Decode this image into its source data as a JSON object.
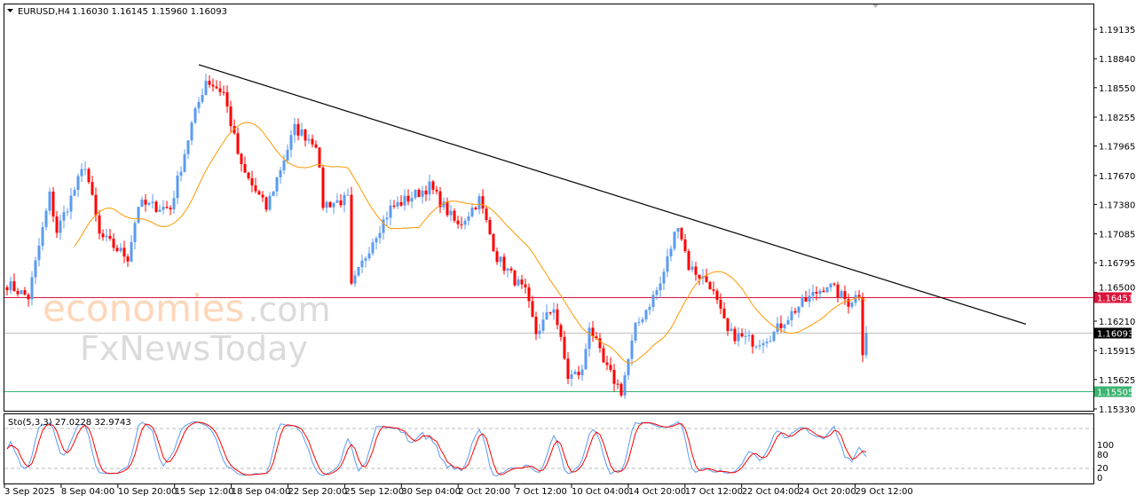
{
  "header": {
    "symbol": "EURUSD,H4",
    "ohlc": "1.16030 1.16145 1.15960 1.16093"
  },
  "watermark": {
    "brand_1": "economies",
    "brand_1_suffix": ".com",
    "brand_2": "FxNewsToday"
  },
  "colors": {
    "bull": "#5b9bf0",
    "bear": "#ff0000",
    "ma": "#ff9900",
    "trendline": "#000000",
    "resistance": "#dc143c",
    "support": "#3cb371",
    "current": "#000000"
  },
  "chart_data": [
    {
      "type": "candlestick",
      "title": "EURUSD,H4",
      "ylim": [
        1.1533,
        1.19135
      ],
      "y_ticks": [
        "1.19135",
        "1.18840",
        "1.18550",
        "1.18255",
        "1.17965",
        "1.17670",
        "1.17380",
        "1.17085",
        "1.16795",
        "1.16500",
        "1.16210",
        "1.15915",
        "1.15625",
        "1.15330"
      ],
      "x_ticks": [
        "3 Sep 2025",
        "8 Sep 04:00",
        "10 Sep 20:00",
        "15 Sep 12:00",
        "18 Sep 04:00",
        "22 Sep 20:00",
        "25 Sep 12:00",
        "30 Sep 04:00",
        "2 Oct 20:00",
        "7 Oct 12:00",
        "10 Oct 04:00",
        "14 Oct 20:00",
        "17 Oct 12:00",
        "22 Oct 04:00",
        "24 Oct 20:00",
        "29 Oct 12:00"
      ],
      "bars_total": 243,
      "close_path": [
        [
          0,
          1.1658
        ],
        [
          6,
          1.1645
        ],
        [
          12,
          1.1747
        ],
        [
          14,
          1.1711
        ],
        [
          22,
          1.1778
        ],
        [
          26,
          1.1707
        ],
        [
          34,
          1.1685
        ],
        [
          37,
          1.1738
        ],
        [
          46,
          1.1734
        ],
        [
          52,
          1.1818
        ],
        [
          56,
          1.1863
        ],
        [
          61,
          1.185
        ],
        [
          66,
          1.1774
        ],
        [
          73,
          1.1734
        ],
        [
          81,
          1.1814
        ],
        [
          87,
          1.18
        ],
        [
          89,
          1.1738
        ],
        [
          96,
          1.1743
        ],
        [
          97,
          1.1654
        ],
        [
          103,
          1.1703
        ],
        [
          108,
          1.1734
        ],
        [
          119,
          1.1756
        ],
        [
          127,
          1.1716
        ],
        [
          133,
          1.1743
        ],
        [
          138,
          1.1685
        ],
        [
          146,
          1.1649
        ],
        [
          149,
          1.1609
        ],
        [
          154,
          1.1636
        ],
        [
          158,
          1.1565
        ],
        [
          162,
          1.157
        ],
        [
          164,
          1.1618
        ],
        [
          168,
          1.1578
        ],
        [
          173,
          1.1551
        ],
        [
          177,
          1.1614
        ],
        [
          184,
          1.1658
        ],
        [
          189,
          1.172
        ],
        [
          192,
          1.1676
        ],
        [
          198,
          1.1658
        ],
        [
          203,
          1.1609
        ],
        [
          211,
          1.16
        ],
        [
          216,
          1.1609
        ],
        [
          219,
          1.1622
        ],
        [
          223,
          1.1636
        ],
        [
          231,
          1.1658
        ],
        [
          237,
          1.164
        ],
        [
          240,
          1.1649
        ],
        [
          241,
          1.1592
        ],
        [
          242,
          1.16093
        ]
      ],
      "moving_average_period": 20,
      "trendline": {
        "from": [
          54,
          1.1878
        ],
        "to": [
          287,
          1.1618
        ]
      },
      "levels": [
        {
          "name": "resistance",
          "value": "1.16451"
        },
        {
          "name": "current",
          "value": "1.16093"
        },
        {
          "name": "support",
          "value": "1.15505"
        }
      ]
    },
    {
      "type": "line",
      "title": "Sto(5,3,3) 27.0228 32.9743",
      "ylim": [
        0,
        100
      ],
      "y_ticks": [
        "100",
        "80",
        "20",
        "0"
      ],
      "levels": [
        80,
        20
      ],
      "series": [
        {
          "name": "main",
          "color": "#5b9bf0"
        },
        {
          "name": "signal",
          "color": "#ff0000"
        }
      ]
    }
  ]
}
